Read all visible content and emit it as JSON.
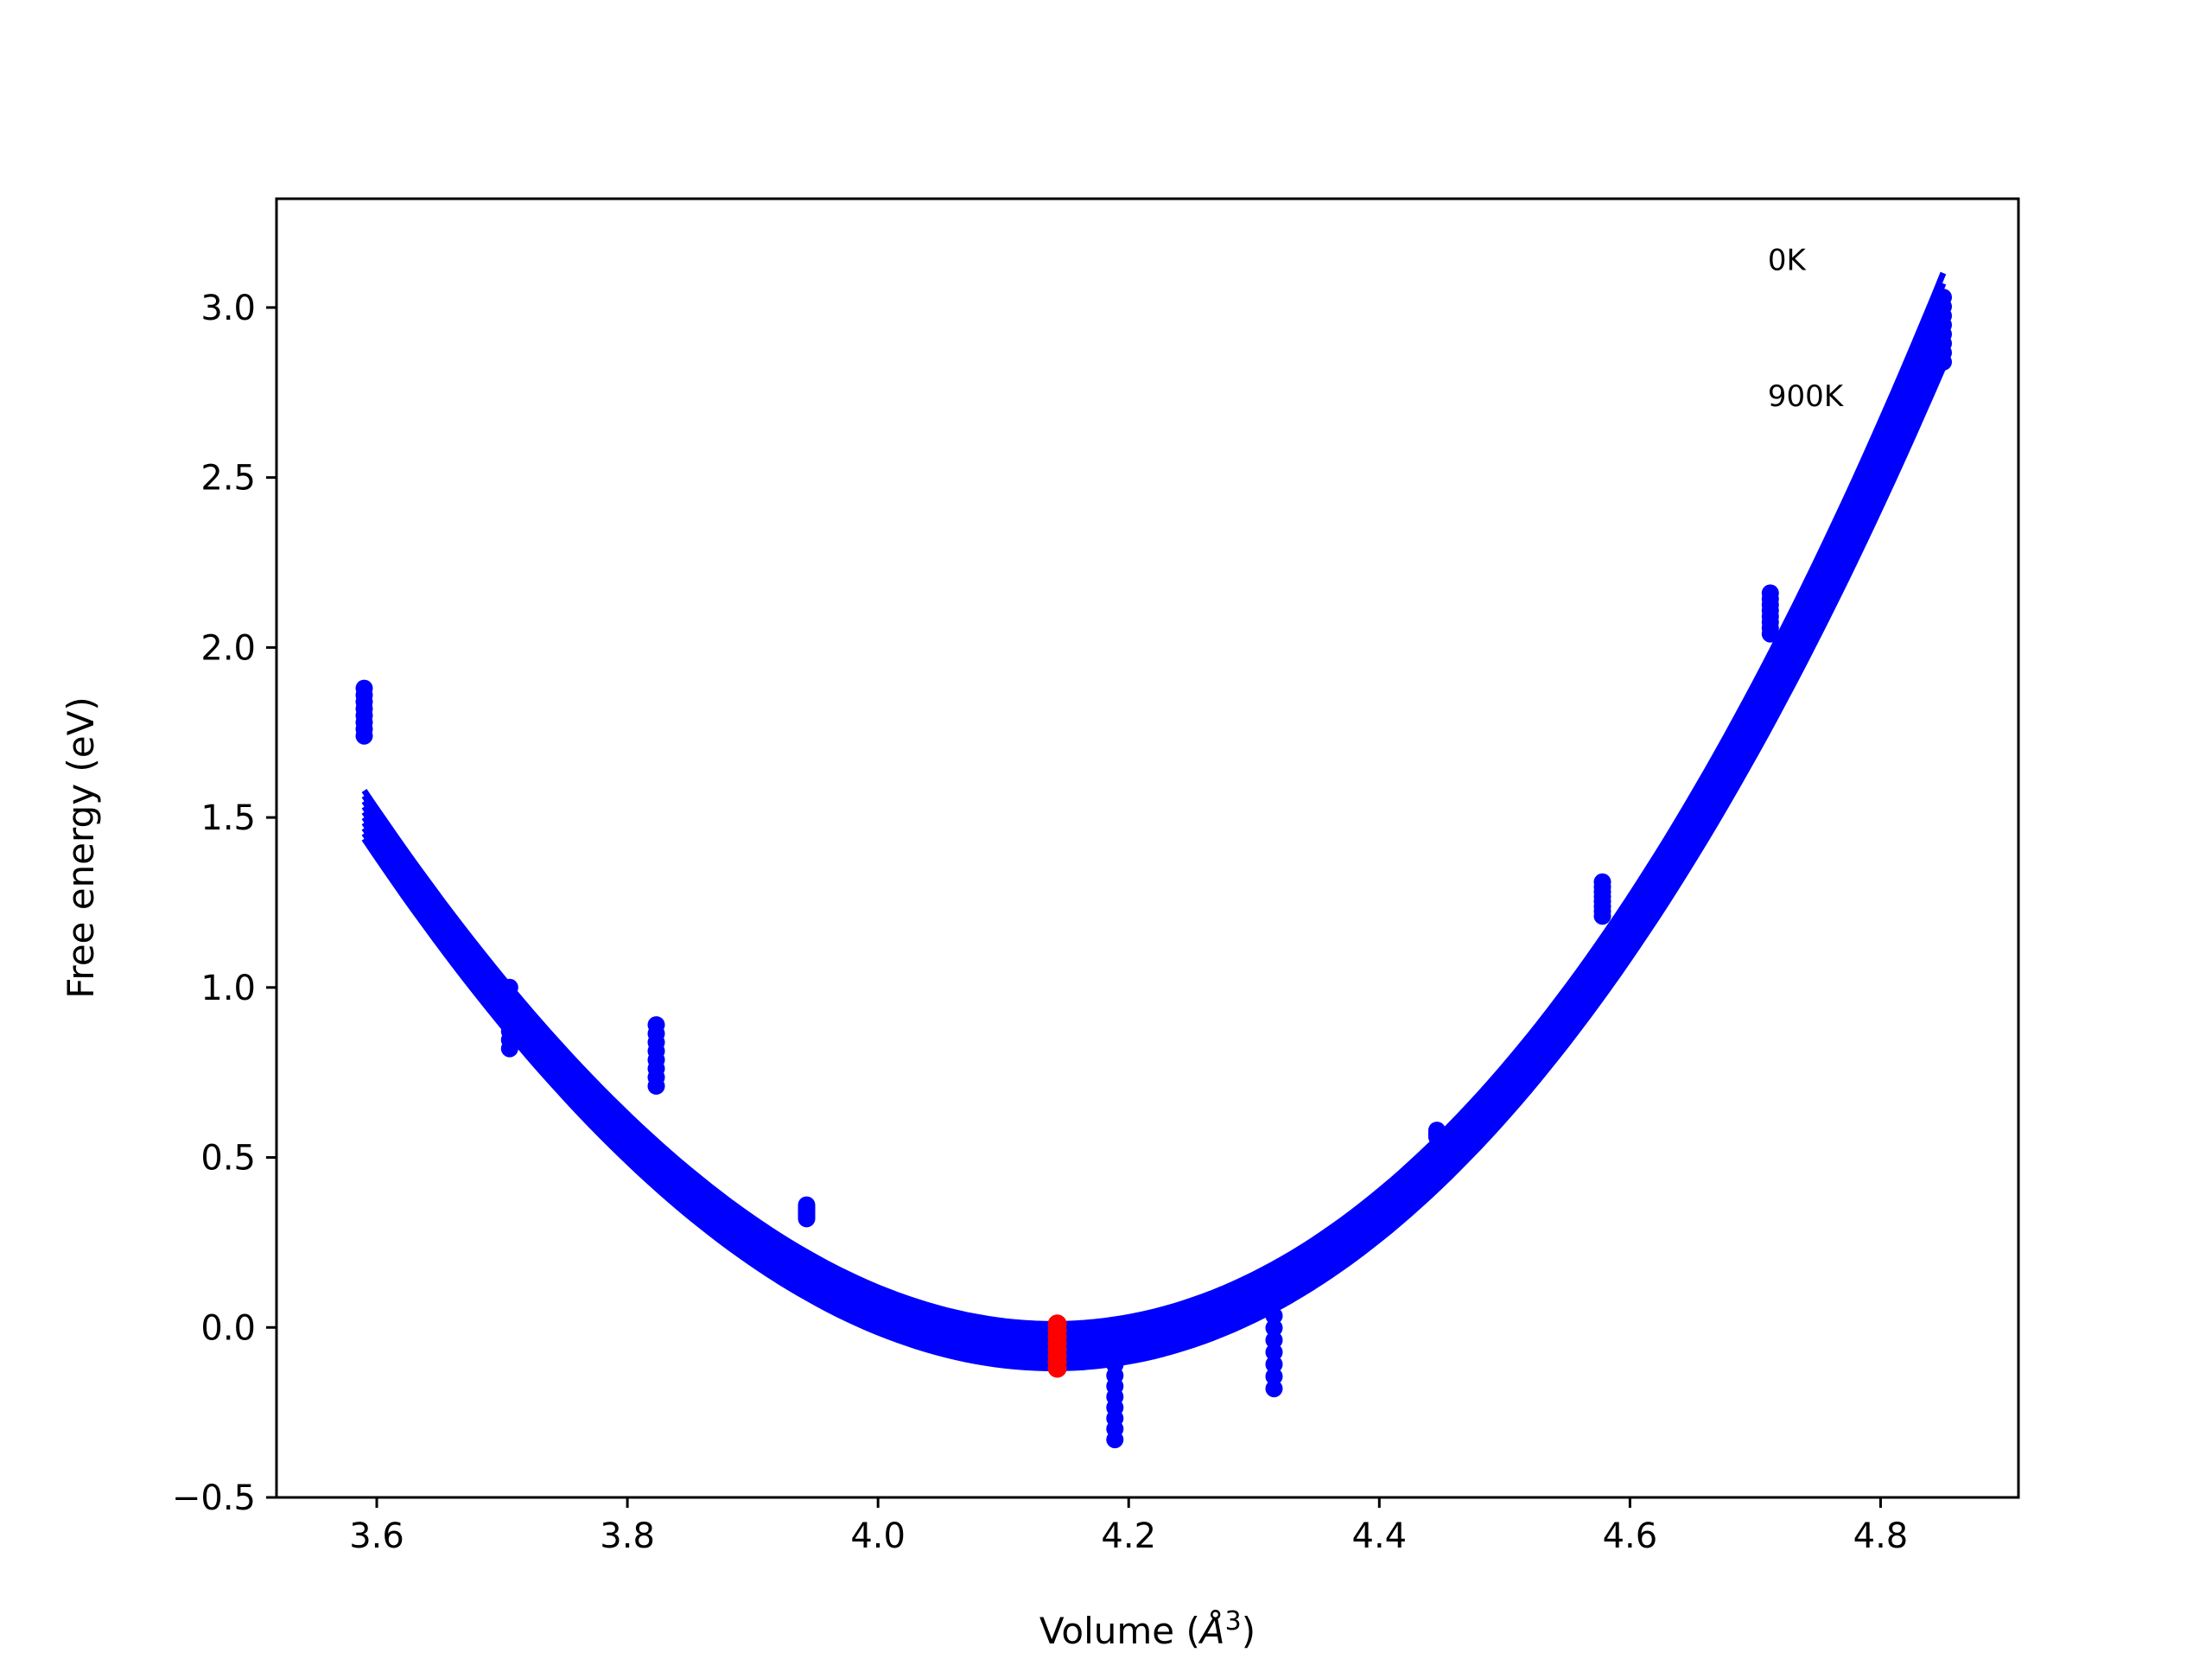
{
  "chart_data": {
    "type": "line",
    "xlabel": "Volume (Å³)",
    "xlabel_parts": {
      "base": "Volume (",
      "unit": "Å",
      "exp": "3",
      "close": ")"
    },
    "ylabel": "Free energy (eV)",
    "xlim": [
      3.52,
      4.91
    ],
    "ylim": [
      -0.5,
      3.32
    ],
    "xticks": [
      3.6,
      3.8,
      4.0,
      4.2,
      4.4,
      4.6,
      4.8
    ],
    "xtick_labels": [
      "3.6",
      "3.8",
      "4.0",
      "4.2",
      "4.4",
      "4.6",
      "4.8"
    ],
    "yticks": [
      -0.5,
      0.0,
      0.5,
      1.0,
      1.5,
      2.0,
      2.5,
      3.0
    ],
    "ytick_labels": [
      "−0.5",
      "0.0",
      "0.5",
      "1.0",
      "1.5",
      "2.0",
      "2.5",
      "3.0"
    ],
    "grid": false,
    "legend": "none",
    "annotations": [
      {
        "text": "0K",
        "x": 4.71,
        "y": 3.11
      },
      {
        "text": "900K",
        "x": 4.71,
        "y": 2.71
      }
    ],
    "curves": {
      "color": "#0000ff",
      "count": 10,
      "x_range": [
        3.59,
        4.85
      ],
      "top": {
        "x0": 4.14,
        "y0": 0.01,
        "a": 5.6,
        "b": 0.75
      },
      "bottom": {
        "x0": 4.14,
        "y0": -0.12,
        "a": 5.45,
        "b": 0.55
      }
    },
    "point_groups": [
      {
        "x": 3.59,
        "y_min": 1.74,
        "y_max": 1.88,
        "color": "#0000ff"
      },
      {
        "x": 3.706,
        "y_min": 0.82,
        "y_max": 1.0,
        "color": "#0000ff"
      },
      {
        "x": 3.823,
        "y_min": 0.71,
        "y_max": 0.89,
        "color": "#0000ff"
      },
      {
        "x": 3.943,
        "y_min": 0.32,
        "y_max": 0.36,
        "color": "#0000ff"
      },
      {
        "x": 4.189,
        "y_min": -0.33,
        "y_max": -0.11,
        "color": "#0000ff"
      },
      {
        "x": 4.316,
        "y_min": -0.18,
        "y_max": 0.07,
        "color": "#0000ff"
      },
      {
        "x": 4.446,
        "y_min": 0.56,
        "y_max": 0.58,
        "color": "#0000ff"
      },
      {
        "x": 4.578,
        "y_min": 1.21,
        "y_max": 1.31,
        "color": "#0000ff"
      },
      {
        "x": 4.712,
        "y_min": 2.04,
        "y_max": 2.16,
        "color": "#0000ff"
      },
      {
        "x": 4.85,
        "y_min": 2.84,
        "y_max": 3.03,
        "color": "#0000ff"
      }
    ],
    "highlight": {
      "x": 4.143,
      "y_min": -0.12,
      "y_max": 0.01,
      "color": "#ff0000"
    }
  }
}
